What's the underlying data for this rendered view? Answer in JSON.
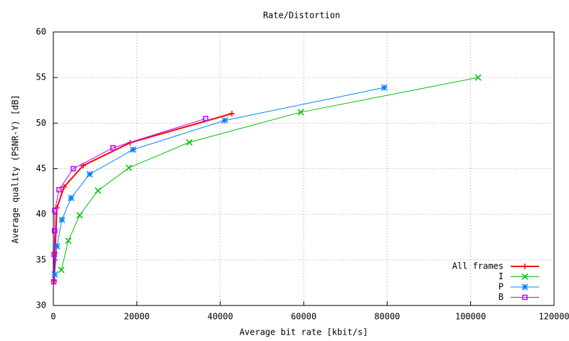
{
  "chart_data": {
    "type": "line",
    "title": "Rate/Distortion",
    "x_label": "Average bit rate [kbit/s]",
    "y_label": "Average quality (PSNR-Y) [dB]",
    "xlim": [
      0,
      120000
    ],
    "ylim": [
      30,
      60
    ],
    "xticks": [
      0,
      20000,
      40000,
      60000,
      80000,
      100000,
      120000
    ],
    "yticks": [
      30,
      35,
      40,
      45,
      50,
      55,
      60
    ],
    "grid": true,
    "legend": "bottom-right",
    "series": [
      {
        "name": "All frames",
        "color": "#ff0000",
        "marker": "plus",
        "width": 2,
        "x": [
          200,
          400,
          850,
          2560,
          7160,
          18400,
          42800
        ],
        "values": [
          32.7,
          35.8,
          40.7,
          43.0,
          45.35,
          47.85,
          51.05
        ]
      },
      {
        "name": "I",
        "color": "#00c000",
        "marker": "cross",
        "width": 1,
        "x": [
          1900,
          3600,
          6300,
          10700,
          18100,
          32600,
          59300,
          101800
        ],
        "values": [
          33.9,
          37.1,
          39.9,
          42.6,
          45.1,
          47.9,
          51.2,
          55.0
        ]
      },
      {
        "name": "P",
        "color": "#0080ff",
        "marker": "star",
        "width": 1,
        "x": [
          340,
          850,
          2050,
          4260,
          8700,
          19100,
          41100,
          79300
        ],
        "values": [
          33.4,
          36.5,
          39.4,
          41.8,
          44.4,
          47.1,
          50.3,
          53.9
        ]
      },
      {
        "name": "B",
        "color": "#c000ff",
        "marker": "square",
        "width": 1,
        "x": [
          100,
          200,
          300,
          340,
          1360,
          4770,
          14300,
          36500
        ],
        "values": [
          32.6,
          35.6,
          38.2,
          40.4,
          42.7,
          45.0,
          47.3,
          50.5
        ]
      }
    ]
  }
}
